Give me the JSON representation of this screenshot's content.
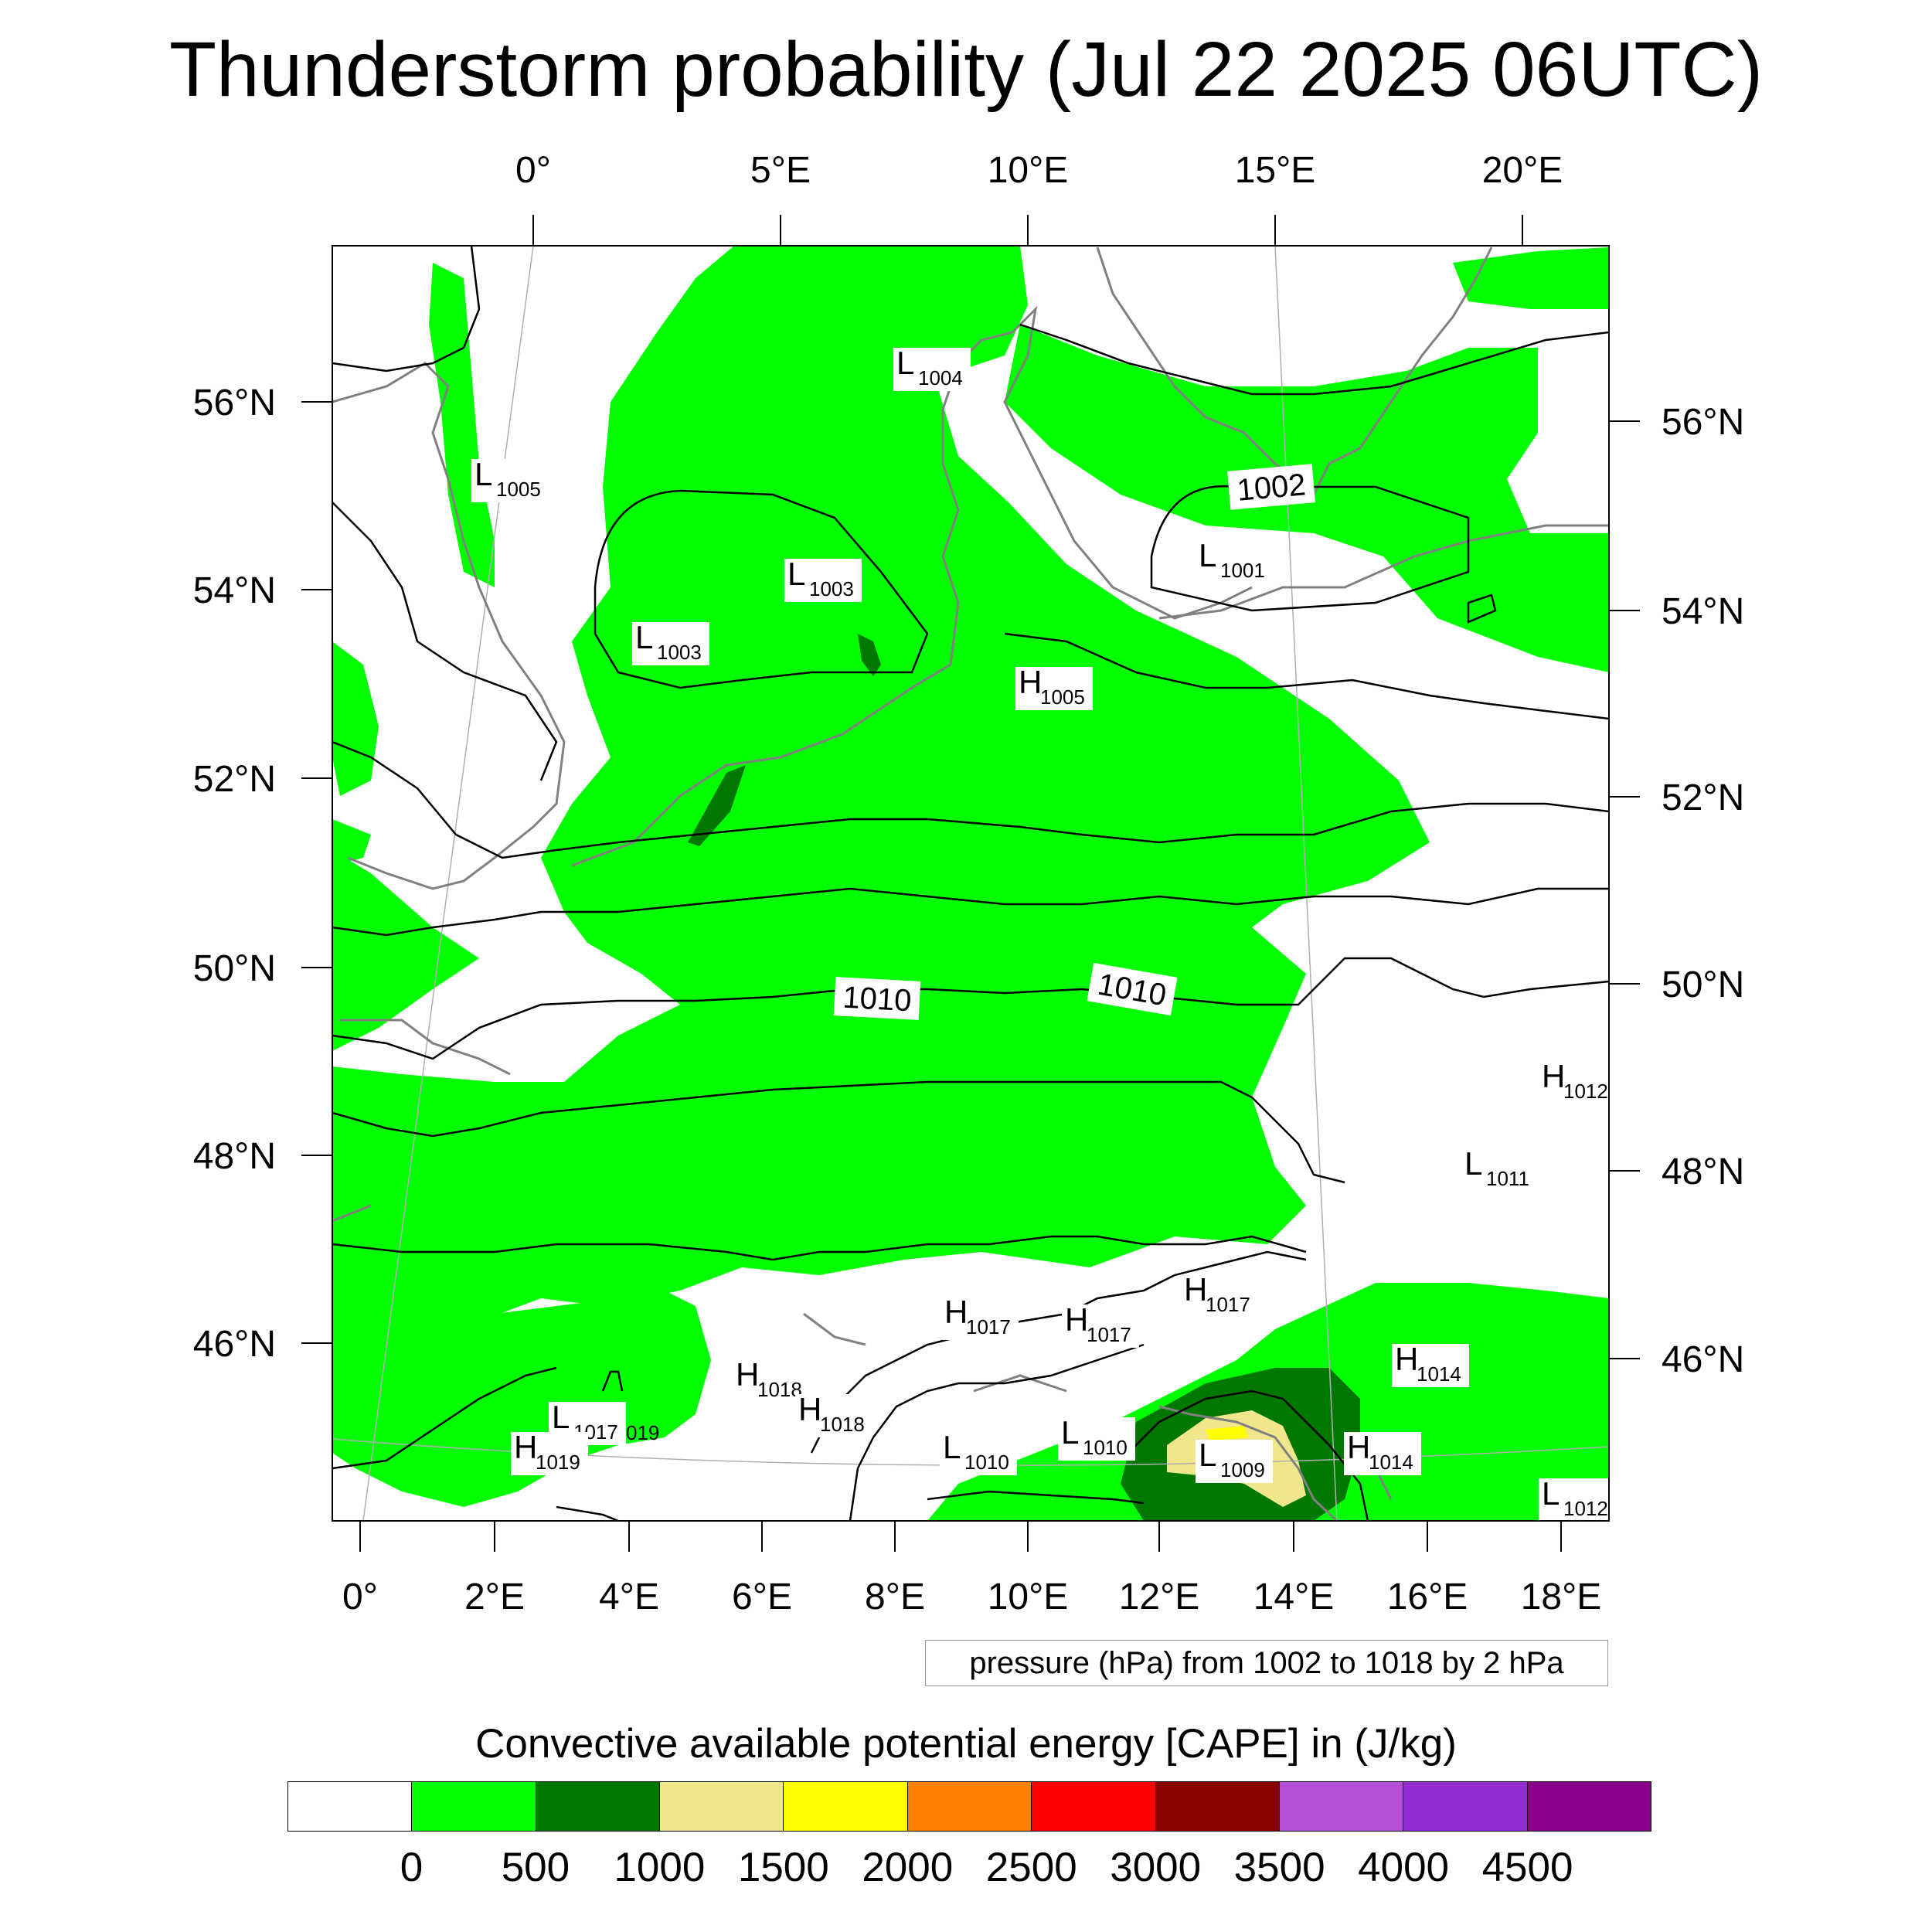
{
  "title": "Thunderstorm probability (Jul 22 2025 06UTC)",
  "top_longitude_labels": [
    "0°",
    "5°E",
    "10°E",
    "15°E",
    "20°E"
  ],
  "bottom_longitude_labels": [
    "0°",
    "2°E",
    "4°E",
    "6°E",
    "8°E",
    "10°E",
    "12°E",
    "14°E",
    "16°E",
    "18°E"
  ],
  "left_latitude_labels": [
    "56°N",
    "54°N",
    "52°N",
    "50°N",
    "48°N",
    "46°N"
  ],
  "right_latitude_labels": [
    "56°N",
    "54°N",
    "52°N",
    "50°N",
    "48°N",
    "46°N"
  ],
  "pressure_centers": [
    {
      "type": "L",
      "value": "1004"
    },
    {
      "type": "L",
      "value": "1005"
    },
    {
      "type": "L",
      "value": "1003"
    },
    {
      "type": "L",
      "value": "1003"
    },
    {
      "type": "L",
      "value": "1001"
    },
    {
      "type": "H",
      "value": "1005"
    },
    {
      "type": "H",
      "value": "1012"
    },
    {
      "type": "L",
      "value": "1011"
    },
    {
      "type": "H",
      "value": "1017"
    },
    {
      "type": "H",
      "value": "1017"
    },
    {
      "type": "H",
      "value": "1017"
    },
    {
      "type": "H",
      "value": "1014"
    },
    {
      "type": "H",
      "value": "1018"
    },
    {
      "type": "H",
      "value": "1018"
    },
    {
      "type": "L",
      "value": "1017"
    },
    {
      "type": "H",
      "value": "1019"
    },
    {
      "type": "L",
      "value": "1010"
    },
    {
      "type": "L",
      "value": "1010"
    },
    {
      "type": "L",
      "value": "1009"
    },
    {
      "type": "H",
      "value": "1014"
    },
    {
      "type": "L",
      "value": "1012"
    }
  ],
  "stray_label": "019",
  "contour_labels": [
    "1002",
    "1010",
    "1010"
  ],
  "contour_note": "pressure (hPa) from 1002 to 1018 by 2 hPa",
  "colorbar": {
    "title": "Convective available potential energy [CAPE] in (J/kg)",
    "colors": [
      "#ffffff",
      "#00ff00",
      "#007800",
      "#f0e68c",
      "#ffff00",
      "#ff8000",
      "#ff0000",
      "#8b0000",
      "#b84fd8",
      "#932bd0",
      "#8b008b"
    ],
    "labels": [
      "0",
      "500",
      "1000",
      "1500",
      "2000",
      "2500",
      "3000",
      "3500",
      "4000",
      "4500"
    ]
  }
}
